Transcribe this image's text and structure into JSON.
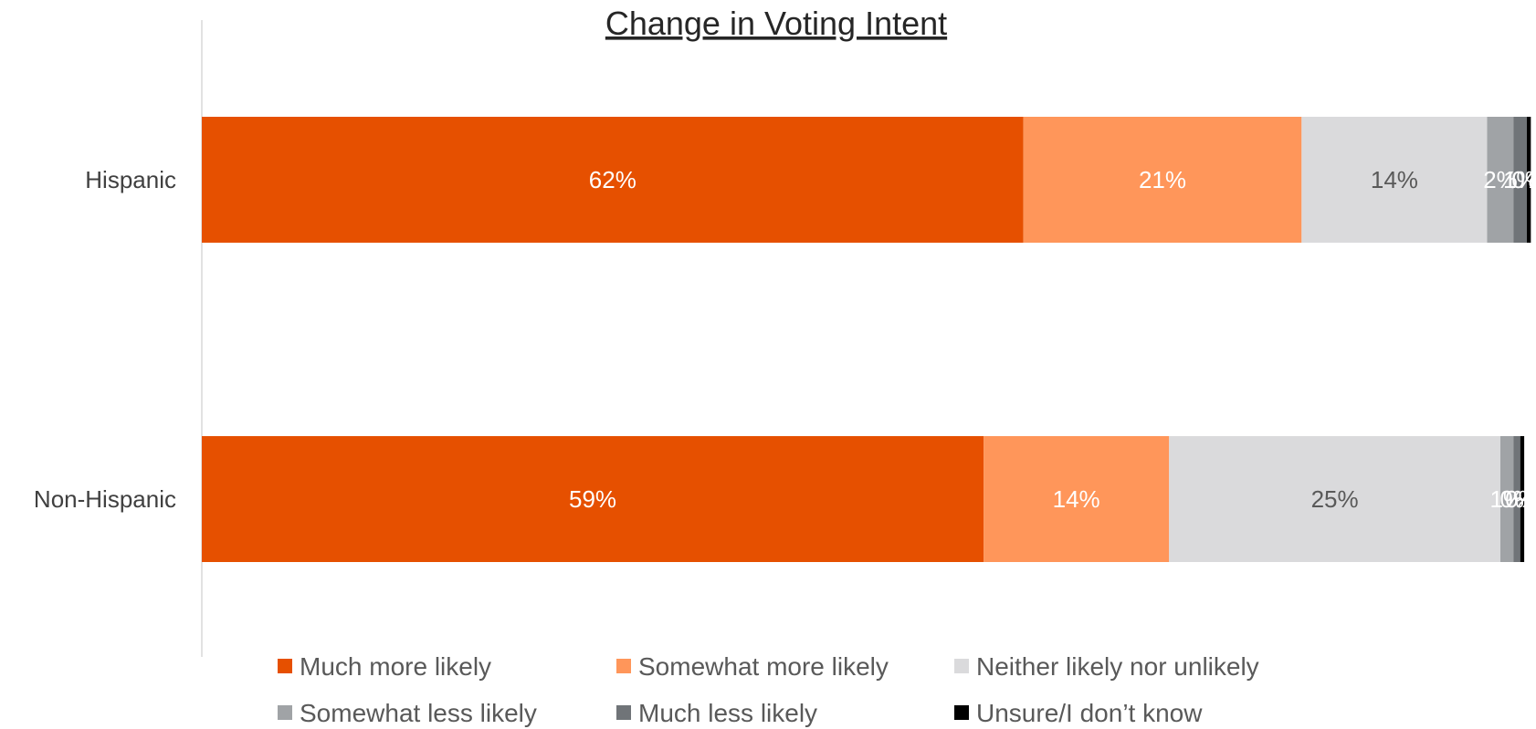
{
  "chart_data": {
    "type": "bar",
    "orientation": "horizontal",
    "stacked": true,
    "title": "Change in Voting Intent",
    "categories": [
      "Hispanic",
      "Non-Hispanic"
    ],
    "series": [
      {
        "name": "Much more likely",
        "color": "#E65000",
        "label_color": "#FFFFFF",
        "values": [
          62,
          59
        ]
      },
      {
        "name": "Somewhat more likely",
        "color": "#FF965A",
        "label_color": "#FFFFFF",
        "values": [
          21,
          14
        ]
      },
      {
        "name": "Neither likely nor unlikely",
        "color": "#DADADC",
        "label_color": "#595959",
        "values": [
          14,
          25
        ]
      },
      {
        "name": "Somewhat less likely",
        "color": "#A0A3A6",
        "label_color": "#FFFFFF",
        "values": [
          2,
          1
        ]
      },
      {
        "name": "Much less likely",
        "color": "#707478",
        "label_color": "#FFFFFF",
        "values": [
          1,
          0.5
        ]
      },
      {
        "name": "Unsure/I don’t know",
        "color": "#000000",
        "label_color": "#FFFFFF",
        "values": [
          0.3,
          0.3
        ]
      }
    ],
    "data_labels": [
      [
        "62%",
        "21%",
        "14%",
        "2%",
        "1%",
        "0%"
      ],
      [
        "59%",
        "14%",
        "25%",
        "1%",
        "0%",
        "0%"
      ]
    ],
    "xlim": [
      0,
      100
    ],
    "legend_position": "bottom",
    "grid": false
  }
}
